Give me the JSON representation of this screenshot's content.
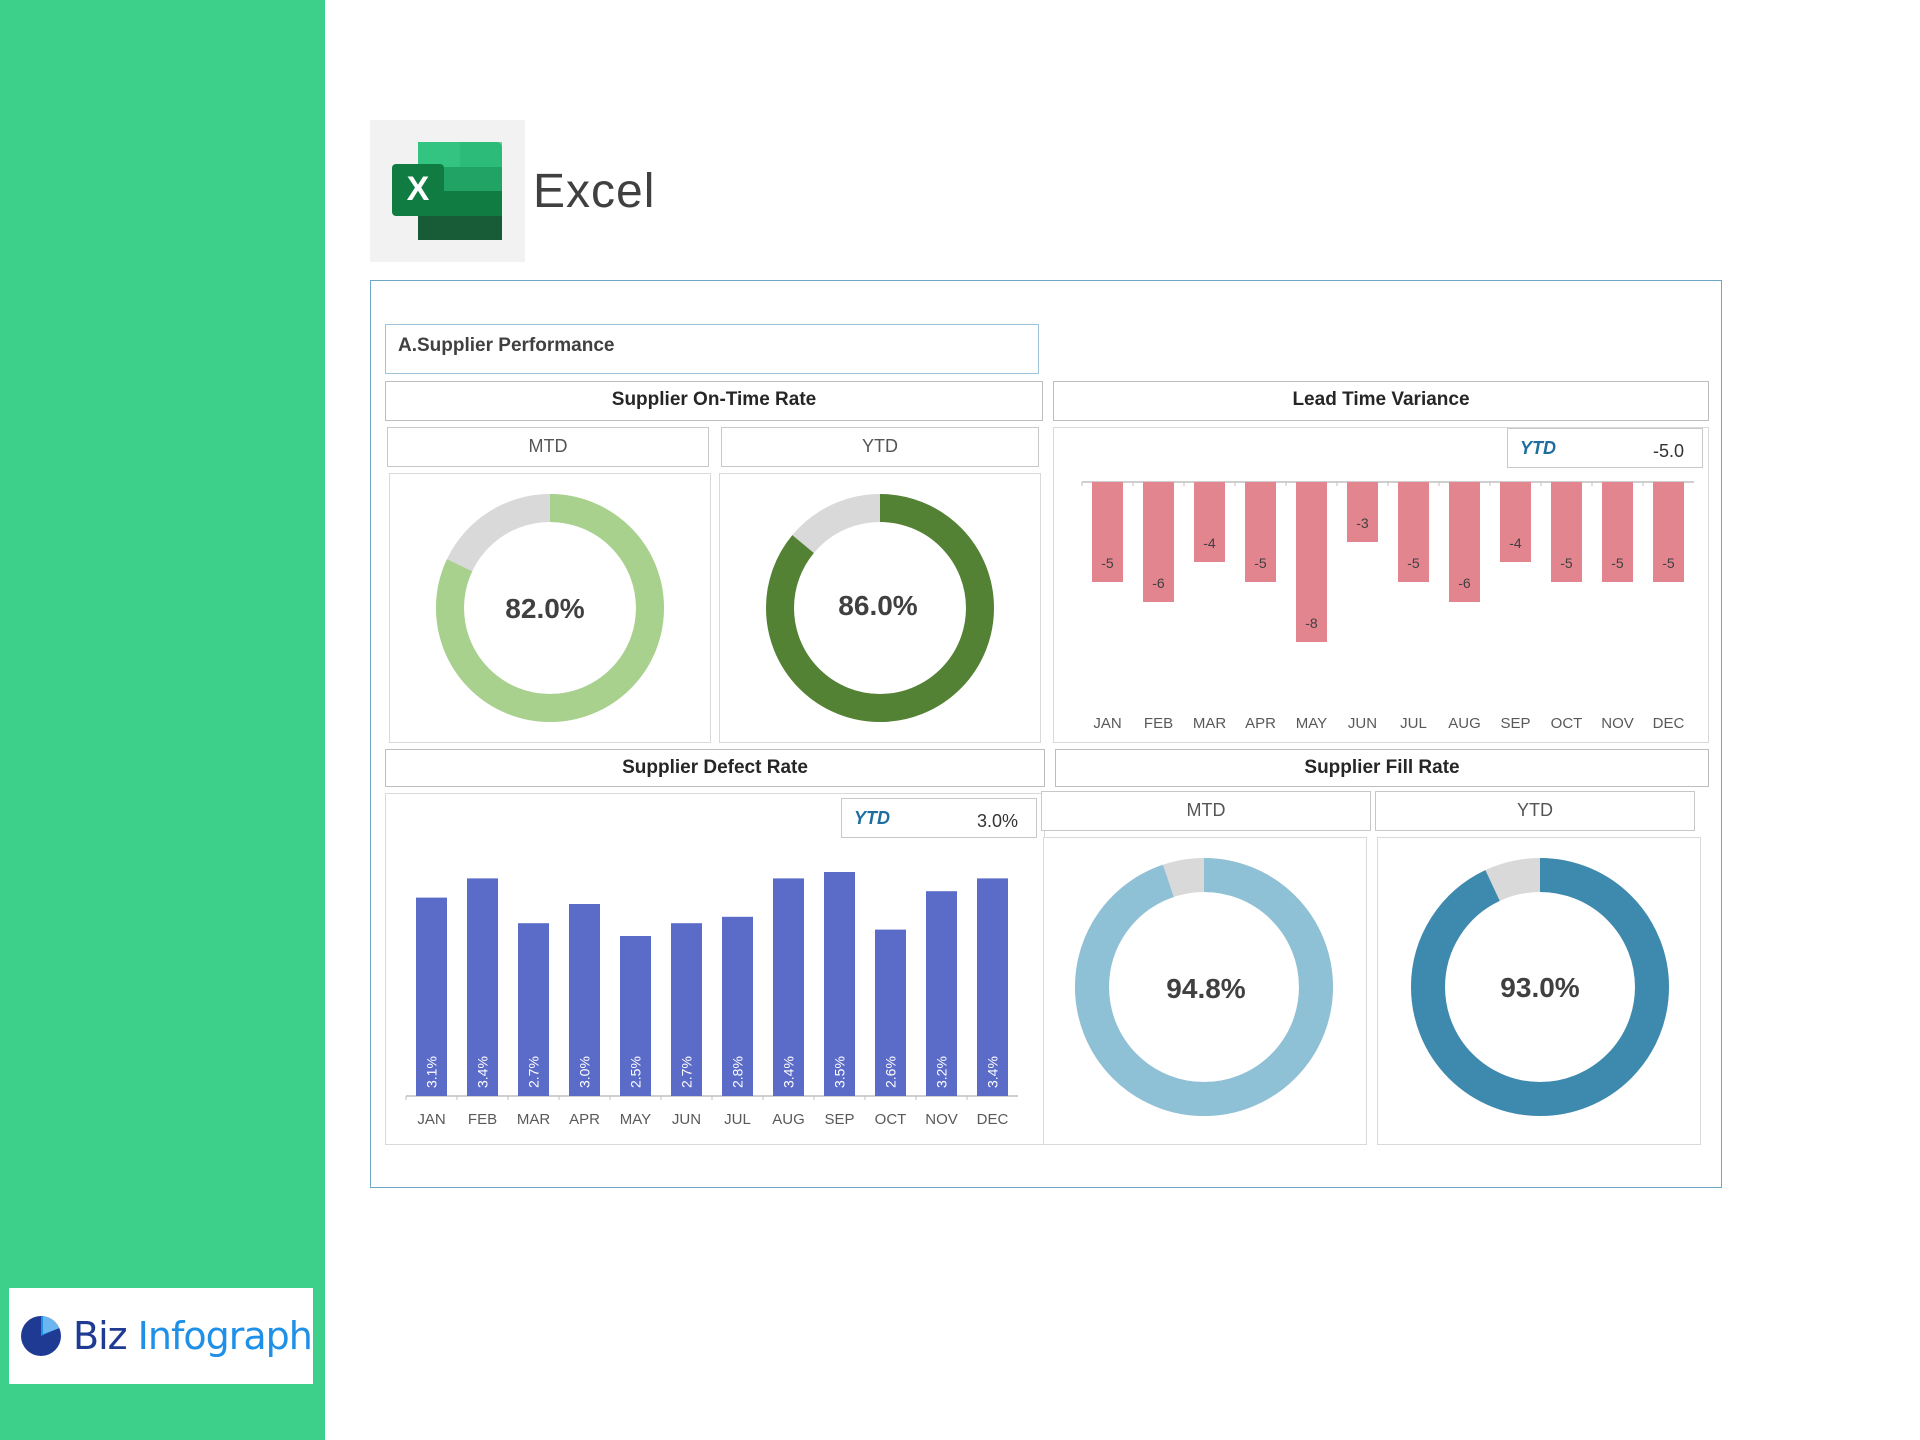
{
  "app": {
    "title": "Excel",
    "icon": "excel-icon"
  },
  "brand": {
    "name_part1": "Biz",
    "name_part2": "Infograph",
    "icon": "pie-logo-icon"
  },
  "section": {
    "title": "A.Supplier Performance"
  },
  "on_time": {
    "title": "Supplier On-Time Rate",
    "mtd_label": "MTD",
    "ytd_label": "YTD"
  },
  "lead_time": {
    "title": "Lead Time Variance",
    "ytd_label": "YTD",
    "ytd_value": "-5.0"
  },
  "defect": {
    "title": "Supplier Defect Rate",
    "ytd_label": "YTD",
    "ytd_value": "3.0%"
  },
  "fill_rate": {
    "title": "Supplier Fill Rate",
    "mtd_label": "MTD",
    "ytd_label": "YTD"
  },
  "colors": {
    "sidebar": "#3dd08a",
    "on_time_mtd": "#a9d18e",
    "on_time_ytd": "#548235",
    "lead_bar": "#e3858f",
    "defect_bar": "#5b6bc8",
    "fill_mtd": "#8fc1d6",
    "fill_ytd": "#3d8aae",
    "donut_rest": "#d9d9d9"
  },
  "chart_data": [
    {
      "type": "pie",
      "variant": "donut",
      "title": "Supplier On-Time Rate — MTD",
      "value": 82.0,
      "label": "82.0%"
    },
    {
      "type": "pie",
      "variant": "donut",
      "title": "Supplier On-Time Rate — YTD",
      "value": 86.0,
      "label": "86.0%"
    },
    {
      "type": "bar",
      "title": "Lead Time Variance",
      "categories": [
        "JAN",
        "FEB",
        "MAR",
        "APR",
        "MAY",
        "JUN",
        "JUL",
        "AUG",
        "SEP",
        "OCT",
        "NOV",
        "DEC"
      ],
      "values": [
        -5,
        -6,
        -4,
        -5,
        -8,
        -3,
        -5,
        -6,
        -4,
        -5,
        -5,
        -5
      ],
      "ylim": [
        -9,
        0
      ]
    },
    {
      "type": "bar",
      "title": "Supplier Defect Rate",
      "categories": [
        "JAN",
        "FEB",
        "MAR",
        "APR",
        "MAY",
        "JUN",
        "JUL",
        "AUG",
        "SEP",
        "OCT",
        "NOV",
        "DEC"
      ],
      "values": [
        3.1,
        3.4,
        2.7,
        3.0,
        2.5,
        2.7,
        2.8,
        3.4,
        3.5,
        2.6,
        3.2,
        3.4
      ],
      "labels": [
        "3.1%",
        "3.4%",
        "2.7%",
        "3.0%",
        "2.5%",
        "2.7%",
        "2.8%",
        "3.4%",
        "3.5%",
        "2.6%",
        "3.2%",
        "3.4%"
      ],
      "ylim": [
        0,
        3.6
      ]
    },
    {
      "type": "pie",
      "variant": "donut",
      "title": "Supplier Fill Rate — MTD",
      "value": 94.8,
      "label": "94.8%"
    },
    {
      "type": "pie",
      "variant": "donut",
      "title": "Supplier Fill Rate — YTD",
      "value": 93.0,
      "label": "93.0%"
    }
  ]
}
